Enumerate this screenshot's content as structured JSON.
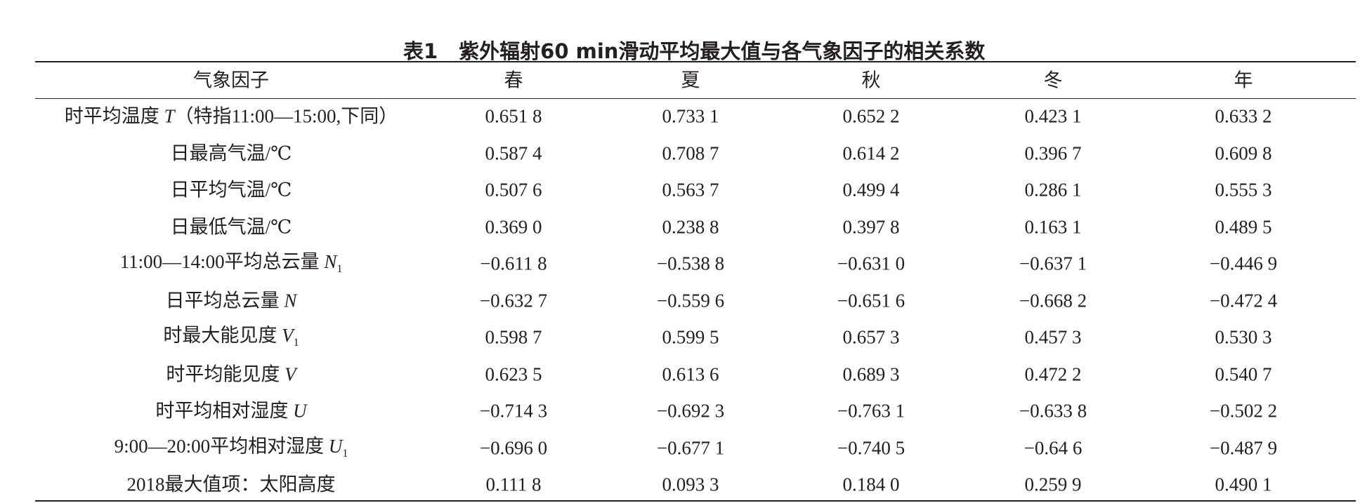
{
  "table": {
    "title": {
      "label": "表1",
      "text": "紫外辐射60 min滑动平均最大值与各气象因子的相关系数"
    },
    "header": [
      "气象因子",
      "春",
      "夏",
      "秋",
      "冬",
      "年"
    ],
    "rows": [
      {
        "factor": {
          "pre": "时平均温度 ",
          "var": "T",
          "post": "（特指11:00—15:00,下同）"
        },
        "values": [
          "0.651 8",
          "0.733 1",
          "0.652 2",
          "0.423 1",
          "0.633 2"
        ]
      },
      {
        "factor": {
          "pre": "日最高气温/℃"
        },
        "values": [
          "0.587 4",
          "0.708 7",
          "0.614 2",
          "0.396 7",
          "0.609 8"
        ]
      },
      {
        "factor": {
          "pre": "日平均气温/℃"
        },
        "values": [
          "0.507 6",
          "0.563 7",
          "0.499 4",
          "0.286 1",
          "0.555 3"
        ]
      },
      {
        "factor": {
          "pre": "日最低气温/℃"
        },
        "values": [
          "0.369 0",
          "0.238 8",
          "0.397 8",
          "0.163 1",
          "0.489 5"
        ]
      },
      {
        "factor": {
          "pre": "11:00—14:00平均总云量 ",
          "var": "N",
          "sub": "1"
        },
        "values": [
          "−0.611 8",
          "−0.538 8",
          "−0.631 0",
          "−0.637 1",
          "−0.446 9"
        ]
      },
      {
        "factor": {
          "pre": "日平均总云量 ",
          "var": "N"
        },
        "values": [
          "−0.632 7",
          "−0.559 6",
          "−0.651 6",
          "−0.668 2",
          "−0.472 4"
        ]
      },
      {
        "factor": {
          "pre": "时最大能见度 ",
          "var": "V",
          "sub": "1"
        },
        "values": [
          "0.598 7",
          "0.599 5",
          "0.657 3",
          "0.457 3",
          "0.530 3"
        ]
      },
      {
        "factor": {
          "pre": "时平均能见度 ",
          "var": "V"
        },
        "values": [
          "0.623 5",
          "0.613 6",
          "0.689 3",
          "0.472 2",
          "0.540 7"
        ]
      },
      {
        "factor": {
          "pre": "时平均相对湿度 ",
          "var": "U"
        },
        "values": [
          "−0.714 3",
          "−0.692 3",
          "−0.763 1",
          "−0.633 8",
          "−0.502 2"
        ]
      },
      {
        "factor": {
          "pre": "9:00—20:00平均相对湿度 ",
          "var": "U",
          "sub": "1"
        },
        "values": [
          "−0.696 0",
          "−0.677 1",
          "−0.740 5",
          "−0.64 6",
          "−0.487 9"
        ]
      },
      {
        "factor": {
          "pre": "2018最大值项：太阳高度"
        },
        "values": [
          "0.111 8",
          "0.093 3",
          "0.184 0",
          "0.259 9",
          "0.490 1"
        ]
      }
    ]
  }
}
